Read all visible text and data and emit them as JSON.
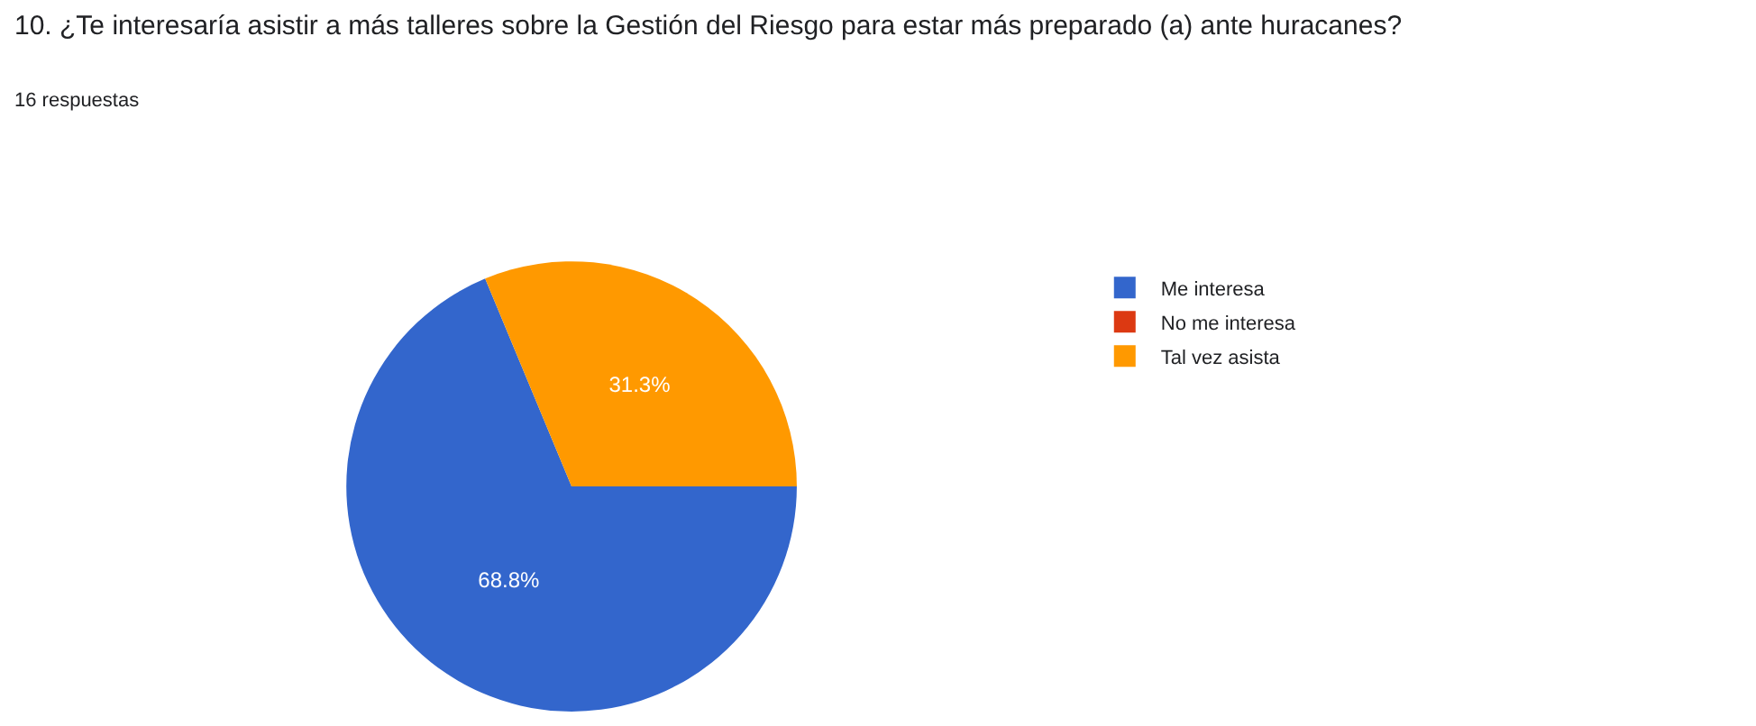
{
  "chart_data": {
    "type": "pie",
    "title": "10. ¿Te interesaría asistir a más talleres sobre la Gestión del Riesgo para estar más preparado (a) ante huracanes?",
    "subtitle": "16 respuestas",
    "categories": [
      "Me interesa",
      "No me interesa",
      "Tal vez asista"
    ],
    "values": [
      68.8,
      0,
      31.3
    ],
    "value_labels": [
      "68.8%",
      null,
      "31.3%"
    ],
    "colors": [
      "#3366cc",
      "#dc3912",
      "#ff9900"
    ],
    "legend": "right"
  }
}
